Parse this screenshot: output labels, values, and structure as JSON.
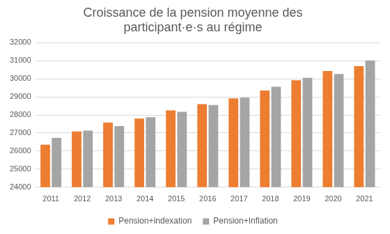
{
  "chart_data": {
    "type": "bar",
    "title": "Croissance de la pension moyenne des participant·e·s au régime",
    "categories": [
      "2011",
      "2012",
      "2013",
      "2014",
      "2015",
      "2016",
      "2017",
      "2018",
      "2019",
      "2020",
      "2021"
    ],
    "series": [
      {
        "name": "Pension+indexation",
        "color": "#ed7d31",
        "values": [
          26350,
          27080,
          27580,
          27800,
          28250,
          28600,
          28920,
          29350,
          29920,
          30430,
          30700
        ]
      },
      {
        "name": "Pension+Inflation",
        "color": "#a5a5a5",
        "values": [
          26730,
          27130,
          27380,
          27870,
          28170,
          28550,
          28950,
          29560,
          30050,
          30260,
          31020
        ]
      }
    ],
    "ylim": [
      24000,
      32000
    ],
    "yticks": [
      24000,
      25000,
      26000,
      27000,
      28000,
      29000,
      30000,
      31000,
      32000
    ],
    "grid": true,
    "legend": "bottom"
  }
}
